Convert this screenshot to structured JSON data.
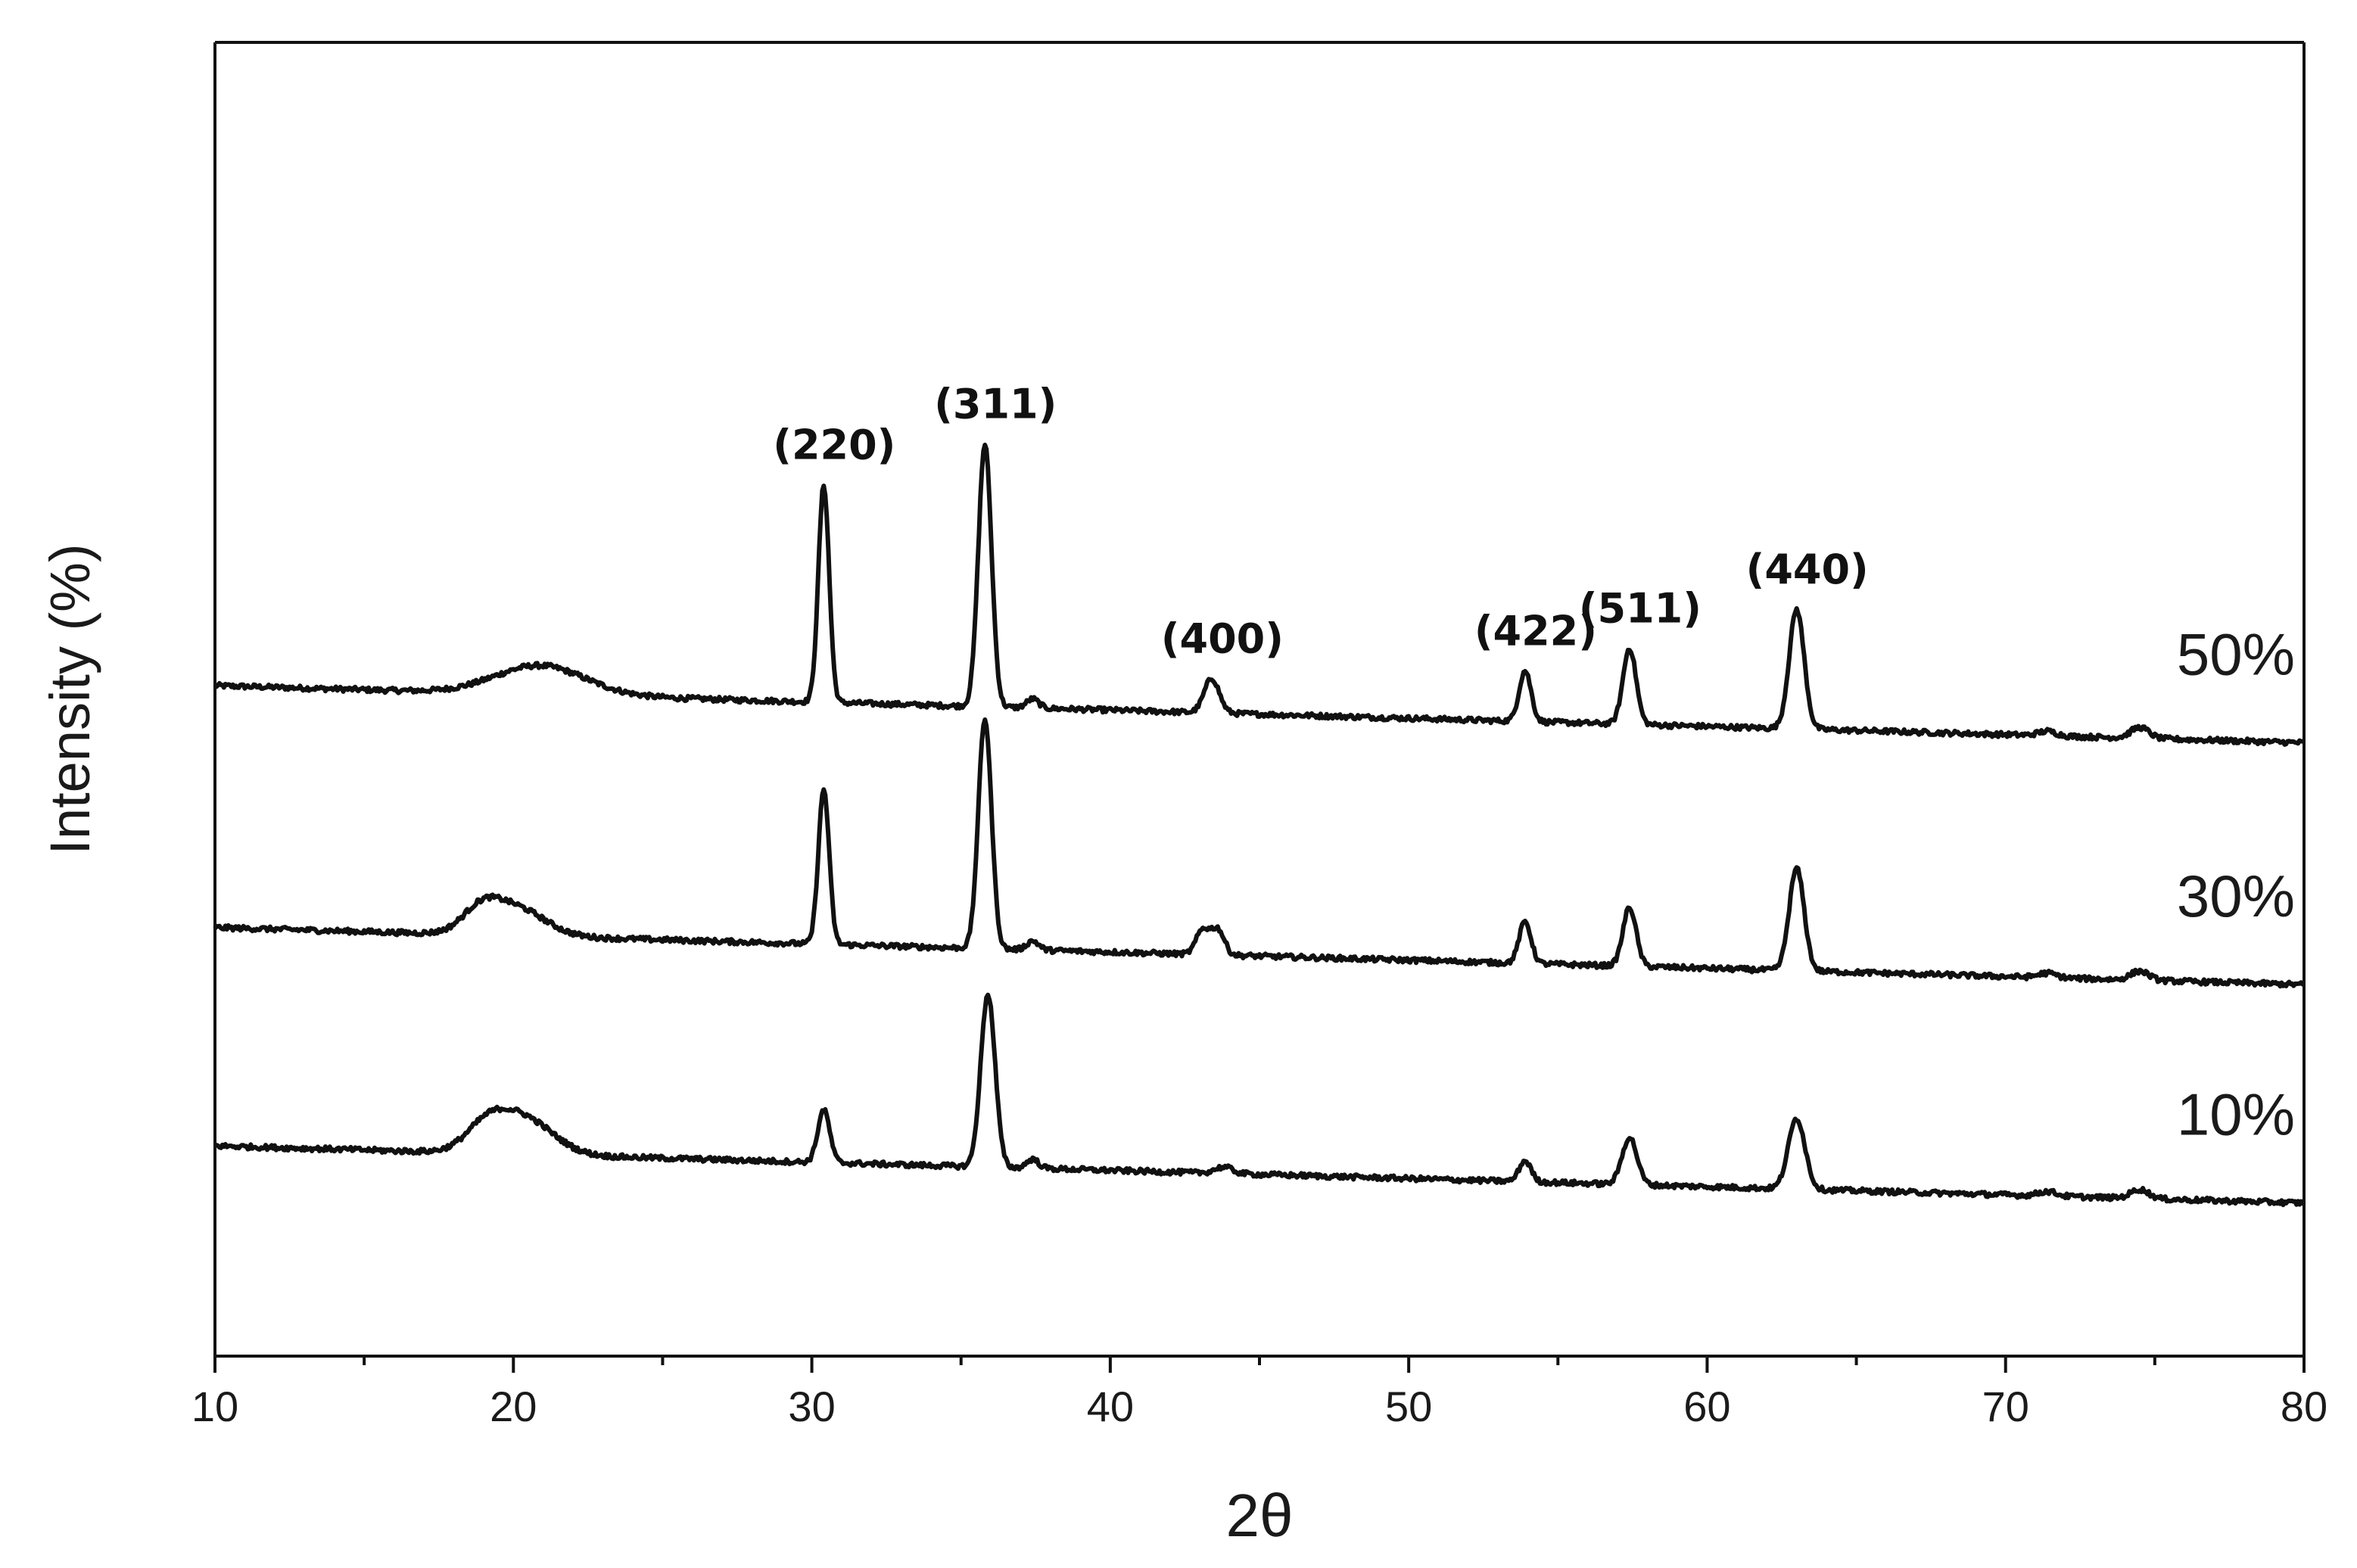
{
  "chart_data": {
    "type": "line",
    "xlabel": "2θ",
    "ylabel": "Intensity (%)",
    "xlim": [
      10,
      80
    ],
    "x_ticks": [
      10,
      20,
      30,
      40,
      50,
      60,
      70,
      80
    ],
    "grid": false,
    "legend": "none",
    "series_labels_position": "right end of each trace",
    "baseline_slope_per_degree": -0.09,
    "series": [
      {
        "name": "50%",
        "baseline": 29.0,
        "peaks": [
          {
            "x": 20.9,
            "height": 3.2,
            "width": 1.5
          },
          {
            "x": 30.4,
            "height": 24.0,
            "width": 0.18
          },
          {
            "x": 35.8,
            "height": 29.0,
            "width": 0.22
          },
          {
            "x": 37.4,
            "height": 1.0,
            "width": 0.2
          },
          {
            "x": 43.4,
            "height": 3.8,
            "width": 0.25
          },
          {
            "x": 53.9,
            "height": 5.6,
            "width": 0.2
          },
          {
            "x": 57.4,
            "height": 8.4,
            "width": 0.22
          },
          {
            "x": 63.0,
            "height": 13.2,
            "width": 0.25
          },
          {
            "x": 71.4,
            "height": 0.5,
            "width": 0.3
          },
          {
            "x": 74.5,
            "height": 1.2,
            "width": 0.3
          }
        ]
      },
      {
        "name": "30%",
        "baseline": 2.3,
        "peaks": [
          {
            "x": 18.9,
            "height": 2.1,
            "width": 0.6
          },
          {
            "x": 20.0,
            "height": 3.2,
            "width": 1.0
          },
          {
            "x": 30.4,
            "height": 17.1,
            "width": 0.18
          },
          {
            "x": 35.8,
            "height": 25.4,
            "width": 0.22
          },
          {
            "x": 37.4,
            "height": 1.0,
            "width": 0.2
          },
          {
            "x": 43.1,
            "height": 2.7,
            "width": 0.22
          },
          {
            "x": 43.6,
            "height": 2.8,
            "width": 0.22
          },
          {
            "x": 53.9,
            "height": 4.6,
            "width": 0.2
          },
          {
            "x": 57.4,
            "height": 6.5,
            "width": 0.22
          },
          {
            "x": 63.0,
            "height": 11.3,
            "width": 0.25
          },
          {
            "x": 71.4,
            "height": 0.5,
            "width": 0.3
          },
          {
            "x": 74.5,
            "height": 1.0,
            "width": 0.3
          }
        ]
      },
      {
        "name": "10%",
        "baseline": -21.8,
        "peaks": [
          {
            "x": 19.1,
            "height": 2.4,
            "width": 0.7
          },
          {
            "x": 20.3,
            "height": 4.0,
            "width": 1.0
          },
          {
            "x": 30.4,
            "height": 5.8,
            "width": 0.2
          },
          {
            "x": 35.9,
            "height": 19.1,
            "width": 0.24
          },
          {
            "x": 37.4,
            "height": 1.0,
            "width": 0.2
          },
          {
            "x": 43.8,
            "height": 0.7,
            "width": 0.3
          },
          {
            "x": 53.9,
            "height": 2.3,
            "width": 0.2
          },
          {
            "x": 57.4,
            "height": 5.2,
            "width": 0.25
          },
          {
            "x": 63.0,
            "height": 7.8,
            "width": 0.28
          },
          {
            "x": 71.4,
            "height": 0.5,
            "width": 0.3
          },
          {
            "x": 74.5,
            "height": 1.0,
            "width": 0.3
          }
        ]
      }
    ],
    "annotations": [
      {
        "text": "(220)",
        "x": 30.4
      },
      {
        "text": "(311)",
        "x": 35.8
      },
      {
        "text": "(400)",
        "x": 43.4
      },
      {
        "text": "(422)",
        "x": 53.9
      },
      {
        "text": "(511)",
        "x": 57.4
      },
      {
        "text": "(440)",
        "x": 63.0
      }
    ]
  }
}
